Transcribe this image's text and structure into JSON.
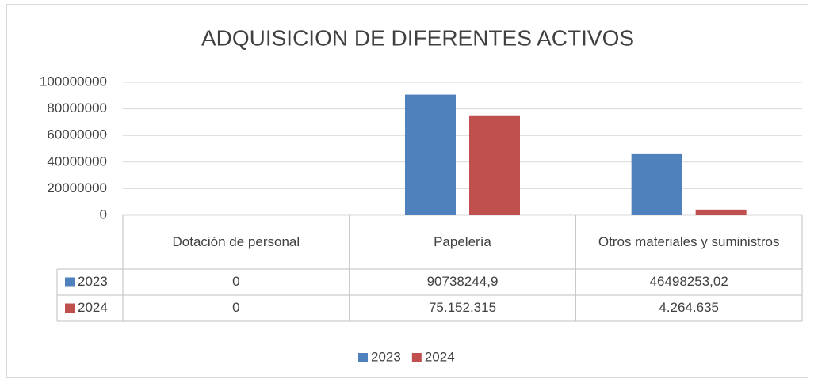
{
  "chart_data": {
    "type": "bar",
    "title": "ADQUISICION DE DIFERENTES ACTIVOS",
    "categories": [
      "Dotación de personal",
      "Papelería",
      "Otros materiales y suministros"
    ],
    "series": [
      {
        "name": "2023",
        "color": "#4f81bd",
        "values": [
          0,
          90738244.9,
          46498253.02
        ],
        "value_labels": [
          "0",
          "90738244,9",
          "46498253,02"
        ]
      },
      {
        "name": "2024",
        "color": "#c0504d",
        "values": [
          0,
          75152315,
          4264635
        ],
        "value_labels": [
          "0",
          "75.152.315",
          "4.264.635"
        ]
      }
    ],
    "ylim": [
      0,
      100000000
    ],
    "yticks": [
      0,
      20000000,
      40000000,
      60000000,
      80000000,
      100000000
    ],
    "grid": true,
    "legend": "bottom"
  }
}
